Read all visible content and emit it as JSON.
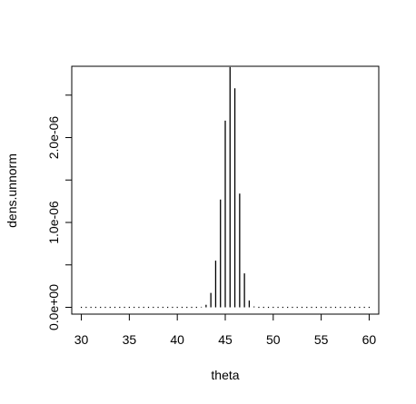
{
  "chart_data": {
    "type": "bar",
    "xlabel": "theta",
    "ylabel": "dens.unnorm",
    "xlim": [
      29,
      61
    ],
    "ylim": [
      -8e-08,
      2.84e-06
    ],
    "x_ticks": [
      30,
      35,
      40,
      45,
      50,
      55,
      60
    ],
    "x_tick_labels": [
      "30",
      "35",
      "40",
      "45",
      "50",
      "55",
      "60"
    ],
    "y_ticks": [
      0,
      5e-07,
      1e-06,
      1.5e-06,
      2e-06,
      2.5e-06
    ],
    "y_tick_labels": [
      "0.0e+00",
      "",
      "1.0e-06",
      "",
      "2.0e-06",
      ""
    ],
    "x": [
      30,
      30.5,
      31,
      31.5,
      32,
      32.5,
      33,
      33.5,
      34,
      34.5,
      35,
      35.5,
      36,
      36.5,
      37,
      37.5,
      38,
      38.5,
      39,
      39.5,
      40,
      40.5,
      41,
      41.5,
      42,
      42.5,
      43,
      43.5,
      44,
      44.5,
      45,
      45.5,
      46,
      46.5,
      47,
      47.5,
      48,
      48.5,
      49,
      49.5,
      50,
      50.5,
      51,
      51.5,
      52,
      52.5,
      53,
      53.5,
      54,
      54.5,
      55,
      55.5,
      56,
      56.5,
      57,
      57.5,
      58,
      58.5,
      59,
      59.5,
      60
    ],
    "values": [
      0,
      0,
      0,
      0,
      0,
      0,
      0,
      0,
      0,
      0,
      0,
      0,
      0,
      0,
      0,
      0,
      0,
      0,
      0,
      0,
      0,
      0,
      0,
      0,
      0,
      1e-09,
      3e-08,
      1.7e-07,
      5.5e-07,
      1.27e-06,
      2.2e-06,
      2.83e-06,
      2.58e-06,
      1.34e-06,
      4e-07,
      8e-08,
      1e-08,
      0,
      0,
      0,
      0,
      0,
      0,
      0,
      0,
      0,
      0,
      0,
      0,
      0,
      0,
      0,
      0,
      0,
      0,
      0,
      0,
      0,
      0,
      0,
      0
    ],
    "grid": false,
    "legend": "none"
  }
}
